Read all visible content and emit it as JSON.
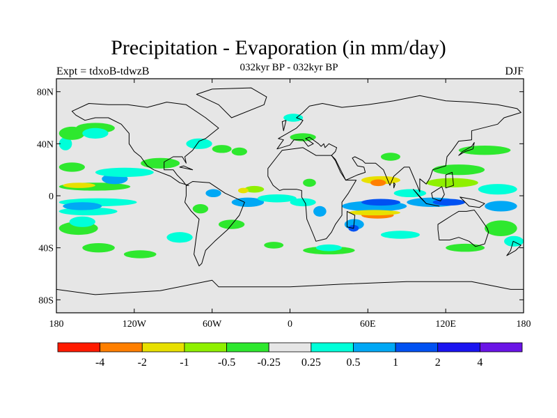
{
  "title": "Precipitation - Evaporation (in mm/day)",
  "subtitle": "032kyr BP - 032kyr BP",
  "experiment_label": "Expt = tdxoB-tdwzB",
  "season_label": "DJF",
  "map": {
    "projection": "cylindrical equidistant",
    "lon_range": [
      -180,
      180
    ],
    "lat_range": [
      -90,
      90
    ],
    "y_tick_labels": [
      "80N",
      "40N",
      "0",
      "40S",
      "80S"
    ],
    "y_tick_lats": [
      80,
      40,
      0,
      -40,
      -80
    ],
    "x_tick_labels": [
      "180",
      "120W",
      "60W",
      "0",
      "60E",
      "120E",
      "180"
    ],
    "x_tick_lons": [
      -180,
      -120,
      -60,
      0,
      60,
      120,
      180
    ],
    "background_color": "#e6e6e6",
    "coastline_color": "#000000"
  },
  "colorbar": {
    "colors": [
      "#ff1a00",
      "#ff7f00",
      "#e8e000",
      "#8ff000",
      "#2ee82e",
      "#e6e6e6",
      "#00ffd9",
      "#00a8f5",
      "#0051f2",
      "#1a14f0",
      "#6a14e6"
    ],
    "labels": [
      "-4",
      "-2",
      "-1",
      "-0.5",
      "-0.25",
      "0.25",
      "0.5",
      "1",
      "2",
      "4"
    ]
  },
  "regions": [
    {
      "level": 6,
      "lon": -178,
      "lat": -5,
      "w": 60,
      "h": 4
    },
    {
      "level": 6,
      "lon": -178,
      "lat": -12,
      "w": 45,
      "h": 4
    },
    {
      "level": 7,
      "lon": -175,
      "lat": -8,
      "w": 30,
      "h": 4
    },
    {
      "level": 4,
      "lon": -178,
      "lat": 7,
      "w": 55,
      "h": 4
    },
    {
      "level": 2,
      "lon": -175,
      "lat": 8,
      "w": 25,
      "h": 2
    },
    {
      "level": 7,
      "lon": -145,
      "lat": 13,
      "w": 20,
      "h": 6
    },
    {
      "level": 6,
      "lon": -150,
      "lat": 18,
      "w": 45,
      "h": 5
    },
    {
      "level": 4,
      "lon": -178,
      "lat": 22,
      "w": 20,
      "h": 5
    },
    {
      "level": 6,
      "lon": -178,
      "lat": 40,
      "w": 10,
      "h": 8
    },
    {
      "level": 4,
      "lon": -178,
      "lat": 48,
      "w": 20,
      "h": 8
    },
    {
      "level": 4,
      "lon": -165,
      "lat": 52,
      "w": 30,
      "h": 6
    },
    {
      "level": 6,
      "lon": -160,
      "lat": 48,
      "w": 20,
      "h": 6
    },
    {
      "level": 4,
      "lon": -178,
      "lat": -25,
      "w": 30,
      "h": 8
    },
    {
      "level": 6,
      "lon": -170,
      "lat": -20,
      "w": 20,
      "h": 6
    },
    {
      "level": 4,
      "lon": -160,
      "lat": -40,
      "w": 25,
      "h": 5
    },
    {
      "level": 4,
      "lon": -128,
      "lat": -45,
      "w": 25,
      "h": 4
    },
    {
      "level": 6,
      "lon": -95,
      "lat": -32,
      "w": 20,
      "h": 6
    },
    {
      "level": 4,
      "lon": -115,
      "lat": 25,
      "w": 30,
      "h": 6
    },
    {
      "level": 6,
      "lon": -80,
      "lat": 40,
      "w": 20,
      "h": 6
    },
    {
      "level": 4,
      "lon": -60,
      "lat": 36,
      "w": 15,
      "h": 4
    },
    {
      "level": 4,
      "lon": -45,
      "lat": 34,
      "w": 12,
      "h": 4
    },
    {
      "level": 3,
      "lon": -35,
      "lat": 5,
      "w": 15,
      "h": 3
    },
    {
      "level": 2,
      "lon": -40,
      "lat": 4,
      "w": 8,
      "h": 2
    },
    {
      "level": 7,
      "lon": -65,
      "lat": 2,
      "w": 12,
      "h": 4
    },
    {
      "level": 7,
      "lon": -45,
      "lat": -5,
      "w": 25,
      "h": 5
    },
    {
      "level": 6,
      "lon": -25,
      "lat": -2,
      "w": 30,
      "h": 4
    },
    {
      "level": 4,
      "lon": -55,
      "lat": -22,
      "w": 20,
      "h": 5
    },
    {
      "level": 4,
      "lon": -75,
      "lat": -10,
      "w": 12,
      "h": 5
    },
    {
      "level": 6,
      "lon": 0,
      "lat": -5,
      "w": 20,
      "h": 4
    },
    {
      "level": 4,
      "lon": 10,
      "lat": 10,
      "w": 10,
      "h": 4
    },
    {
      "level": 7,
      "lon": 18,
      "lat": -12,
      "w": 10,
      "h": 6
    },
    {
      "level": 7,
      "lon": 40,
      "lat": -8,
      "w": 50,
      "h": 6
    },
    {
      "level": 8,
      "lon": 55,
      "lat": -5,
      "w": 30,
      "h": 3
    },
    {
      "level": 1,
      "lon": 55,
      "lat": -15,
      "w": 25,
      "h": 3
    },
    {
      "level": 2,
      "lon": 45,
      "lat": -13,
      "w": 40,
      "h": 2
    },
    {
      "level": 7,
      "lon": 42,
      "lat": -22,
      "w": 15,
      "h": 6
    },
    {
      "level": 8,
      "lon": 45,
      "lat": -25,
      "w": 8,
      "h": 3
    },
    {
      "level": 6,
      "lon": 70,
      "lat": -30,
      "w": 30,
      "h": 4
    },
    {
      "level": 2,
      "lon": 55,
      "lat": 12,
      "w": 30,
      "h": 4
    },
    {
      "level": 1,
      "lon": 62,
      "lat": 10,
      "w": 12,
      "h": 3
    },
    {
      "level": 6,
      "lon": 80,
      "lat": 2,
      "w": 25,
      "h": 4
    },
    {
      "level": 7,
      "lon": 90,
      "lat": -5,
      "w": 40,
      "h": 5
    },
    {
      "level": 8,
      "lon": 110,
      "lat": -5,
      "w": 25,
      "h": 3
    },
    {
      "level": 3,
      "lon": 105,
      "lat": 10,
      "w": 40,
      "h": 5
    },
    {
      "level": 4,
      "lon": 110,
      "lat": 20,
      "w": 40,
      "h": 6
    },
    {
      "level": 4,
      "lon": 130,
      "lat": 35,
      "w": 40,
      "h": 5
    },
    {
      "level": 6,
      "lon": 145,
      "lat": 5,
      "w": 30,
      "h": 6
    },
    {
      "level": 7,
      "lon": 150,
      "lat": -8,
      "w": 25,
      "h": 6
    },
    {
      "level": 4,
      "lon": 150,
      "lat": -25,
      "w": 25,
      "h": 10
    },
    {
      "level": 6,
      "lon": 165,
      "lat": -35,
      "w": 15,
      "h": 6
    },
    {
      "level": 4,
      "lon": 120,
      "lat": -40,
      "w": 30,
      "h": 4
    },
    {
      "level": 4,
      "lon": 10,
      "lat": -42,
      "w": 40,
      "h": 4
    },
    {
      "level": 6,
      "lon": 20,
      "lat": -40,
      "w": 20,
      "h": 3
    },
    {
      "level": 4,
      "lon": -20,
      "lat": -38,
      "w": 15,
      "h": 3
    },
    {
      "level": 4,
      "lon": 0,
      "lat": 45,
      "w": 20,
      "h": 4
    },
    {
      "level": 4,
      "lon": 70,
      "lat": 30,
      "w": 15,
      "h": 4
    },
    {
      "level": 6,
      "lon": -5,
      "lat": 60,
      "w": 15,
      "h": 4
    }
  ],
  "land": [
    [
      [
        -168,
        65
      ],
      [
        -155,
        71
      ],
      [
        -140,
        70
      ],
      [
        -125,
        70
      ],
      [
        -110,
        68
      ],
      [
        -95,
        72
      ],
      [
        -80,
        70
      ],
      [
        -65,
        60
      ],
      [
        -55,
        52
      ],
      [
        -65,
        44
      ],
      [
        -70,
        42
      ],
      [
        -75,
        35
      ],
      [
        -81,
        30
      ],
      [
        -80,
        25
      ],
      [
        -83,
        30
      ],
      [
        -90,
        30
      ],
      [
        -97,
        26
      ],
      [
        -97,
        20
      ],
      [
        -90,
        20
      ],
      [
        -87,
        16
      ],
      [
        -83,
        12
      ],
      [
        -80,
        8
      ],
      [
        -78,
        8
      ],
      [
        -85,
        10
      ],
      [
        -92,
        15
      ],
      [
        -105,
        20
      ],
      [
        -110,
        23
      ],
      [
        -115,
        30
      ],
      [
        -120,
        34
      ],
      [
        -124,
        40
      ],
      [
        -124,
        48
      ],
      [
        -130,
        55
      ],
      [
        -140,
        60
      ],
      [
        -150,
        60
      ],
      [
        -158,
        58
      ],
      [
        -165,
        62
      ]
    ],
    [
      [
        -80,
        8
      ],
      [
        -75,
        11
      ],
      [
        -62,
        10
      ],
      [
        -50,
        2
      ],
      [
        -35,
        -5
      ],
      [
        -39,
        -15
      ],
      [
        -48,
        -26
      ],
      [
        -58,
        -35
      ],
      [
        -65,
        -42
      ],
      [
        -68,
        -52
      ],
      [
        -70,
        -54
      ],
      [
        -74,
        -45
      ],
      [
        -72,
        -30
      ],
      [
        -70,
        -18
      ],
      [
        -76,
        -12
      ],
      [
        -81,
        -5
      ],
      [
        -80,
        0
      ]
    ],
    [
      [
        -45,
        60
      ],
      [
        -20,
        70
      ],
      [
        -18,
        76
      ],
      [
        -30,
        83
      ],
      [
        -60,
        82
      ],
      [
        -72,
        78
      ],
      [
        -55,
        70
      ]
    ],
    [
      [
        -10,
        36
      ],
      [
        -5,
        43
      ],
      [
        -9,
        44
      ],
      [
        -2,
        48
      ],
      [
        5,
        52
      ],
      [
        8,
        55
      ],
      [
        10,
        58
      ],
      [
        5,
        60
      ],
      [
        10,
        64
      ],
      [
        15,
        69
      ],
      [
        25,
        71
      ],
      [
        40,
        68
      ],
      [
        60,
        70
      ],
      [
        80,
        73
      ],
      [
        100,
        77
      ],
      [
        120,
        73
      ],
      [
        140,
        72
      ],
      [
        160,
        70
      ],
      [
        175,
        67
      ],
      [
        178,
        64
      ],
      [
        165,
        60
      ],
      [
        160,
        55
      ],
      [
        140,
        50
      ],
      [
        140,
        43
      ],
      [
        130,
        42
      ],
      [
        125,
        35
      ],
      [
        121,
        30
      ],
      [
        120,
        23
      ],
      [
        110,
        20
      ],
      [
        108,
        14
      ],
      [
        105,
        9
      ],
      [
        100,
        13
      ],
      [
        100,
        3
      ],
      [
        98,
        8
      ],
      [
        95,
        15
      ],
      [
        92,
        22
      ],
      [
        88,
        22
      ],
      [
        80,
        15
      ],
      [
        77,
        8
      ],
      [
        72,
        20
      ],
      [
        66,
        25
      ],
      [
        58,
        25
      ],
      [
        56,
        27
      ],
      [
        50,
        30
      ],
      [
        48,
        29
      ],
      [
        52,
        23
      ],
      [
        57,
        22
      ],
      [
        58,
        18
      ],
      [
        52,
        16
      ],
      [
        43,
        12
      ],
      [
        39,
        18
      ],
      [
        35,
        27
      ],
      [
        32,
        31
      ],
      [
        35,
        34
      ],
      [
        36,
        37
      ],
      [
        30,
        40
      ],
      [
        27,
        37
      ],
      [
        26,
        40
      ],
      [
        24,
        38
      ],
      [
        22,
        40
      ],
      [
        15,
        45
      ],
      [
        12,
        44
      ],
      [
        18,
        40
      ],
      [
        14,
        38
      ],
      [
        10,
        43
      ],
      [
        3,
        43
      ],
      [
        0,
        39
      ]
    ],
    [
      [
        -17,
        15
      ],
      [
        -17,
        21
      ],
      [
        -10,
        30
      ],
      [
        -6,
        35
      ],
      [
        10,
        37
      ],
      [
        20,
        31
      ],
      [
        30,
        31
      ],
      [
        32,
        31
      ],
      [
        35,
        28
      ],
      [
        43,
        12
      ],
      [
        51,
        12
      ],
      [
        45,
        2
      ],
      [
        40,
        -5
      ],
      [
        40,
        -15
      ],
      [
        35,
        -22
      ],
      [
        32,
        -28
      ],
      [
        28,
        -33
      ],
      [
        20,
        -35
      ],
      [
        18,
        -30
      ],
      [
        13,
        -18
      ],
      [
        12,
        -6
      ],
      [
        9,
        -1
      ],
      [
        9,
        4
      ],
      [
        5,
        5
      ],
      [
        -5,
        5
      ],
      [
        -8,
        4
      ],
      [
        -13,
        8
      ]
    ],
    [
      [
        114,
        -22
      ],
      [
        114,
        -26
      ],
      [
        115,
        -34
      ],
      [
        123,
        -34
      ],
      [
        130,
        -32
      ],
      [
        138,
        -35
      ],
      [
        143,
        -39
      ],
      [
        150,
        -37
      ],
      [
        153,
        -28
      ],
      [
        152,
        -25
      ],
      [
        145,
        -15
      ],
      [
        142,
        -11
      ],
      [
        136,
        -12
      ],
      [
        130,
        -12
      ],
      [
        125,
        -15
      ]
    ],
    [
      [
        -180,
        -72
      ],
      [
        -150,
        -76
      ],
      [
        -100,
        -73
      ],
      [
        -60,
        -65
      ],
      [
        -55,
        -70
      ],
      [
        0,
        -70
      ],
      [
        40,
        -68
      ],
      [
        90,
        -66
      ],
      [
        140,
        -66
      ],
      [
        170,
        -72
      ],
      [
        180,
        -72
      ],
      [
        180,
        -90
      ],
      [
        -180,
        -90
      ]
    ],
    [
      [
        95,
        5
      ],
      [
        105,
        -6
      ],
      [
        100,
        -1
      ]
    ],
    [
      [
        105,
        -6
      ],
      [
        115,
        -8
      ],
      [
        110,
        -7
      ]
    ],
    [
      [
        109,
        2
      ],
      [
        117,
        7
      ],
      [
        119,
        1
      ],
      [
        116,
        -4
      ],
      [
        110,
        -2
      ]
    ],
    [
      [
        131,
        -1
      ],
      [
        142,
        -3
      ],
      [
        150,
        -6
      ],
      [
        146,
        -9
      ],
      [
        138,
        -8
      ]
    ],
    [
      [
        130,
        31
      ],
      [
        135,
        34
      ],
      [
        141,
        36
      ],
      [
        142,
        41
      ],
      [
        140,
        38
      ],
      [
        133,
        34
      ]
    ],
    [
      [
        -5,
        50
      ],
      [
        -3,
        58
      ],
      [
        -6,
        57
      ]
    ],
    [
      [
        44,
        -12
      ],
      [
        50,
        -15
      ],
      [
        49,
        -25
      ],
      [
        44,
        -24
      ]
    ],
    [
      [
        172,
        -35
      ],
      [
        178,
        -38
      ],
      [
        174,
        -42
      ],
      [
        167,
        -46
      ],
      [
        170,
        -42
      ]
    ],
    [
      [
        120,
        6
      ],
      [
        126,
        8
      ],
      [
        125,
        18
      ],
      [
        120,
        16
      ]
    ],
    [
      [
        -85,
        22
      ],
      [
        -75,
        20
      ],
      [
        -82,
        23
      ]
    ],
    [
      [
        80,
        6
      ],
      [
        81,
        9
      ],
      [
        80,
        10
      ]
    ]
  ]
}
